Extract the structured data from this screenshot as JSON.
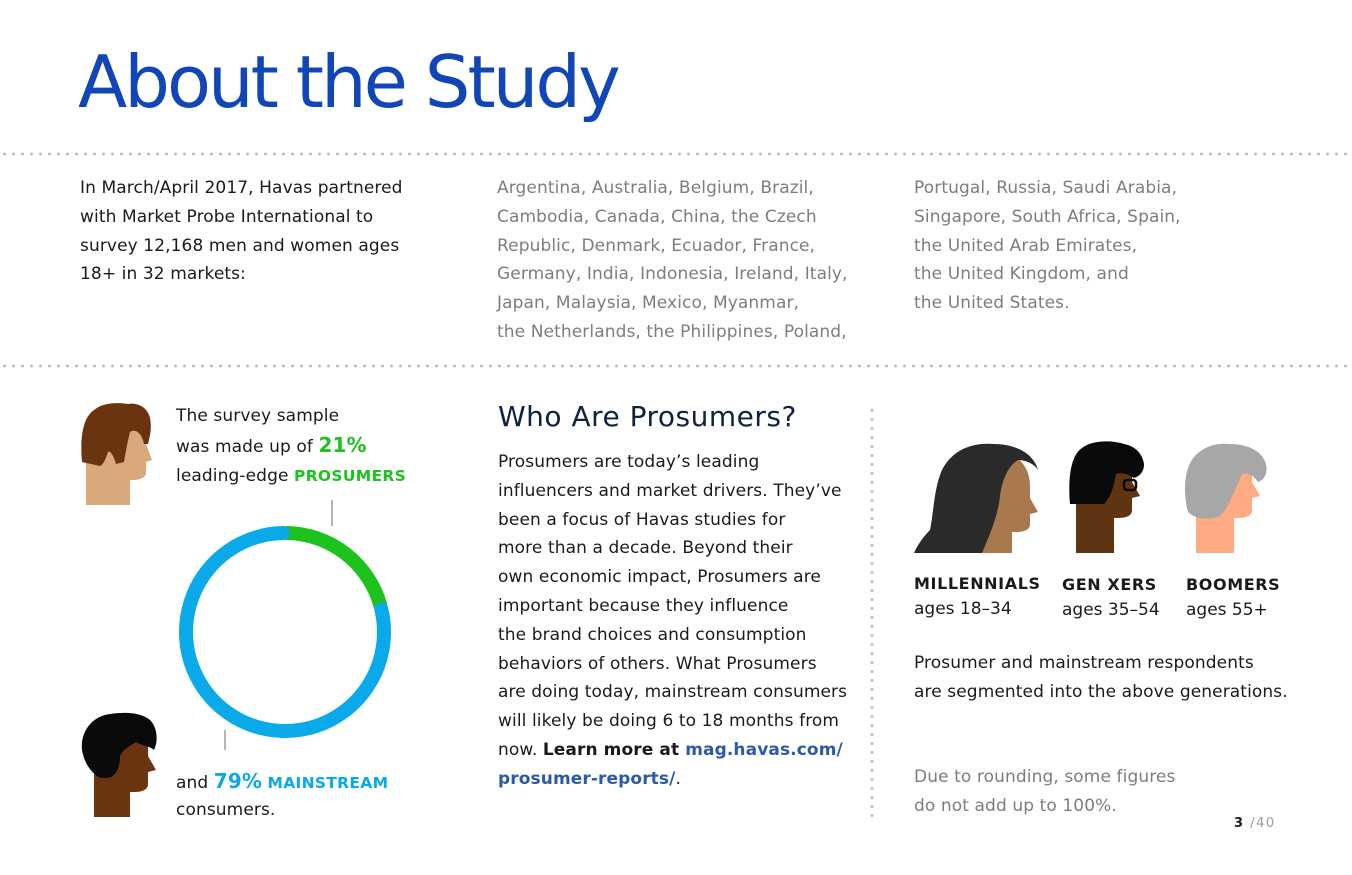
{
  "page": {
    "title": "About the Study",
    "page_current": "3",
    "page_total": "/40"
  },
  "study": {
    "intro_lines": [
      "In March/April 2017, Havas partnered",
      "with Market Probe International to",
      "survey 12,168 men and women ages",
      "18+ in 32 markets:"
    ],
    "markets_col1": [
      "Argentina, Australia, Belgium, Brazil,",
      "Cambodia, Canada, China, the Czech",
      "Republic, Denmark, Ecuador, France,",
      "Germany, India, Indonesia, Ireland, Italy,",
      "Japan, Malaysia, Mexico, Myanmar,",
      "the Netherlands, the Philippines, Poland,"
    ],
    "markets_col2": [
      "Portugal, Russia, Saudi Arabia,",
      "Singapore, South Africa, Spain,",
      "the United Arab Emirates,",
      "the United Kingdom, and",
      "the United States."
    ]
  },
  "sample": {
    "line1": "The survey sample",
    "line2_prefix": "was made up of ",
    "prosumer_pct": "21%",
    "line3_prefix": "leading-edge ",
    "prosumer_label": "PROSUMERS",
    "mainstream_prefix": "and ",
    "mainstream_pct": "79%",
    "mainstream_label": "MAINSTREAM",
    "mainstream_suffix": "consumers."
  },
  "chart_data": {
    "type": "pie",
    "style": "donut",
    "slices": [
      {
        "label": "Prosumers",
        "value": 21,
        "color": "#1ec21e"
      },
      {
        "label": "Mainstream",
        "value": 79,
        "color": "#0aa9ea"
      }
    ]
  },
  "prosumers": {
    "heading": "Who Are Prosumers?",
    "body_lines": [
      "Prosumers are today’s leading",
      "influencers and market drivers. They’ve",
      "been a focus of Havas studies for",
      "more than a decade. Beyond their",
      "own economic impact, Prosumers are",
      "important because they influence",
      "the brand choices and consumption",
      "behaviors of others. What Prosumers",
      "are doing today, mainstream consumers",
      "will likely be doing 6 to 18 months from"
    ],
    "last_prefix": "now. ",
    "learn_more": "Learn more at ",
    "link_line1": "mag.havas.com/",
    "link_line2": "prosumer-reports/",
    "period": "."
  },
  "generations": {
    "items": [
      {
        "label": "MILLENNIALS",
        "ages": "ages 18–34"
      },
      {
        "label": "GEN XERS",
        "ages": "ages 35–54"
      },
      {
        "label": "BOOMERS",
        "ages": "ages 55+"
      }
    ],
    "note_lines": [
      "Prosumer and mainstream respondents",
      "are segmented into the above generations."
    ],
    "rounding_lines": [
      "Due to rounding, some figures",
      "do not add up to 100%."
    ]
  },
  "colors": {
    "title_blue": "#1046b8",
    "prosumer_green": "#1ec21e",
    "mainstream_blue": "#0aa9ea",
    "link_blue": "#2a5aa8"
  }
}
